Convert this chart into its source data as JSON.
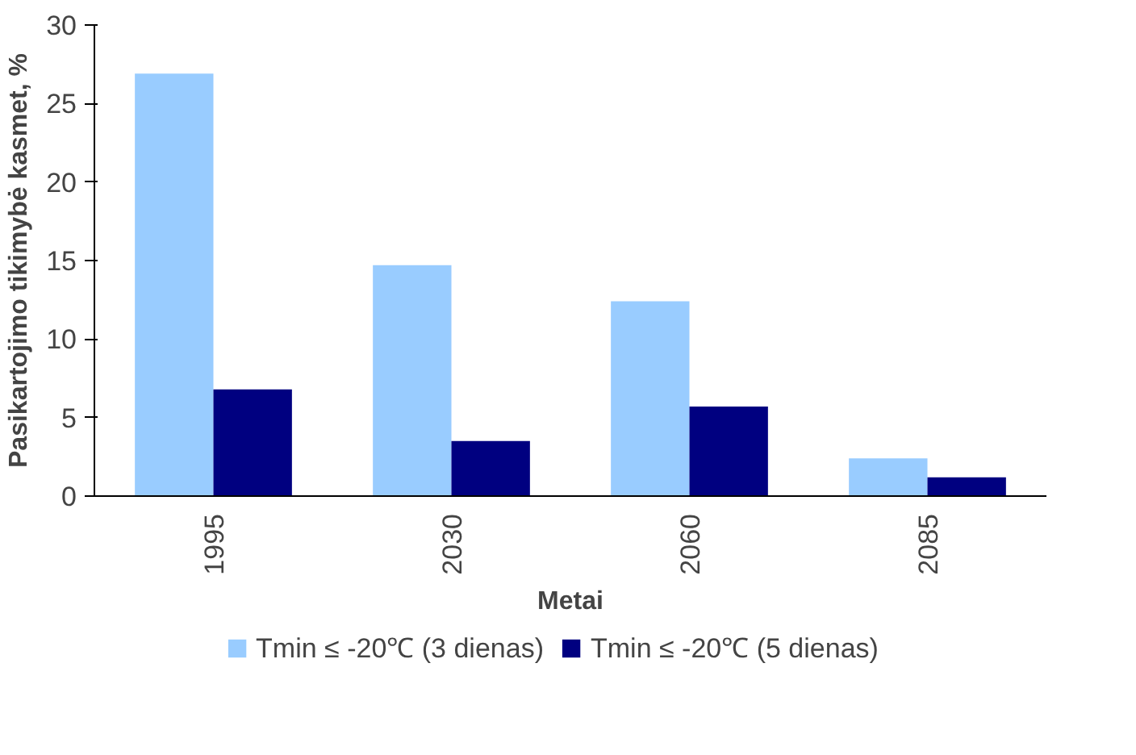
{
  "chart_data": {
    "type": "bar",
    "xlabel": "Metai",
    "ylabel": "Pasikartojimo tikimybė kasmet, %",
    "categories": [
      "1995",
      "2030",
      "2060",
      "2085"
    ],
    "series": [
      {
        "name": "Tmin ≤ -20℃ (3 dienas)",
        "color": "#99ccff",
        "values": [
          26.9,
          14.7,
          12.4,
          2.4
        ]
      },
      {
        "name": "Tmin ≤ -20℃ (5 dienas)",
        "color": "#000080",
        "values": [
          6.8,
          3.5,
          5.7,
          1.2
        ]
      }
    ],
    "ylim": [
      0,
      30
    ],
    "yticks": [
      0,
      5,
      10,
      15,
      20,
      25,
      30
    ],
    "grid": false,
    "legend": "bottom"
  }
}
